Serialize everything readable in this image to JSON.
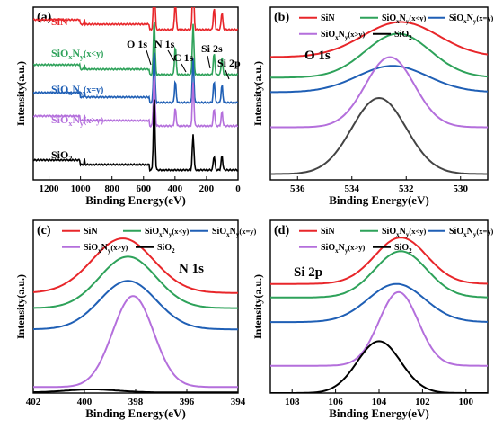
{
  "figure": {
    "panels": [
      {
        "letter": "(a)",
        "xlabel": "Binding Energy(eV)",
        "ylabel": "Intensity(a.u.)",
        "xticks": [
          "1200",
          "1000",
          "800",
          "600",
          "400",
          "200",
          "0"
        ],
        "legend": [
          {
            "base": "SiN",
            "color": "#e8262a"
          },
          {
            "base": "SiO",
            "sub1": "x",
            "mid": "N",
            "sub2": "y",
            "cond": "(x<y)",
            "color": "#2ea25a"
          },
          {
            "base": "SiO",
            "sub1": "x",
            "mid": "N",
            "sub2": "y",
            "cond": "(x=y)",
            "color": "#1f5fb5"
          },
          {
            "base": "SiO",
            "sub1": "x",
            "mid": "N",
            "sub2": "y",
            "cond": "(x>y)",
            "color": "#b46fdc"
          },
          {
            "base": "SiO",
            "sub1": "2",
            "color": "#000000"
          }
        ],
        "peak_labels": [
          "O 1s",
          "N 1s",
          "C 1s",
          "Si 2s",
          "Si 2p"
        ]
      },
      {
        "letter": "(b)",
        "xlabel": "Binding Energy(eV)",
        "ylabel": "Intensity(a.u.)",
        "xticks": [
          "536",
          "534",
          "532",
          "530"
        ],
        "title": "O 1s"
      },
      {
        "letter": "(c)",
        "xlabel": "Binding Energy(eV)",
        "ylabel": "Intensity(a.u.)",
        "xticks": [
          "402",
          "400",
          "398",
          "396",
          "394"
        ],
        "title": "N 1s"
      },
      {
        "letter": "(d)",
        "xlabel": "Binding Energy(eV)",
        "ylabel": "Intensity(a.u.)",
        "xticks": [
          "108",
          "106",
          "104",
          "102",
          "100"
        ],
        "title": "Si 2p"
      }
    ]
  },
  "chart_data": [
    {
      "type": "line",
      "panel": "(a)",
      "xlabel": "Binding Energy(eV)",
      "ylabel": "Intensity(a.u.)",
      "xlim": [
        1300,
        0
      ],
      "series": [
        {
          "name": "SiN",
          "color": "#e8262a",
          "offset": 4,
          "peaks": [
            {
              "x": 532,
              "h": 1.6
            },
            {
              "x": 398,
              "h": 0.8
            },
            {
              "x": 285,
              "h": 1.4
            },
            {
              "x": 152,
              "h": 0.6
            },
            {
              "x": 102,
              "h": 0.5
            }
          ]
        },
        {
          "name": "SiOxNy(x<y)",
          "color": "#2ea25a",
          "offset": 3,
          "peaks": [
            {
              "x": 532,
              "h": 1.6
            },
            {
              "x": 398,
              "h": 0.8
            },
            {
              "x": 285,
              "h": 1.4
            },
            {
              "x": 152,
              "h": 0.6
            },
            {
              "x": 102,
              "h": 0.5
            }
          ]
        },
        {
          "name": "SiOxNy(x=y)",
          "color": "#1f5fb5",
          "offset": 2,
          "peaks": [
            {
              "x": 532,
              "h": 1.5
            },
            {
              "x": 398,
              "h": 0.6
            },
            {
              "x": 285,
              "h": 1.2
            },
            {
              "x": 152,
              "h": 0.6
            },
            {
              "x": 102,
              "h": 0.5
            }
          ]
        },
        {
          "name": "SiOxNy(x>y)",
          "color": "#b46fdc",
          "offset": 1,
          "peaks": [
            {
              "x": 532,
              "h": 1.5
            },
            {
              "x": 398,
              "h": 0.5
            },
            {
              "x": 285,
              "h": 1.2
            },
            {
              "x": 152,
              "h": 0.5
            },
            {
              "x": 102,
              "h": 0.4
            }
          ]
        },
        {
          "name": "SiO2",
          "color": "#000000",
          "offset": 0,
          "peaks": [
            {
              "x": 532,
              "h": 2.1
            },
            {
              "x": 285,
              "h": 1.0
            },
            {
              "x": 152,
              "h": 0.4
            },
            {
              "x": 102,
              "h": 0.4
            }
          ]
        }
      ]
    },
    {
      "type": "line",
      "panel": "(b)",
      "title": "O 1s",
      "xlabel": "Binding Energy(eV)",
      "ylabel": "Intensity(a.u.)",
      "xlim": [
        537,
        529
      ],
      "series": [
        {
          "name": "SiN",
          "color": "#e8262a",
          "base": 4.2,
          "center": 532.2,
          "height": 1.2,
          "sigma": 1.4
        },
        {
          "name": "SiOxNy(x<y)",
          "color": "#2ea25a",
          "base": 3.5,
          "center": 532.3,
          "height": 1.5,
          "sigma": 1.2
        },
        {
          "name": "SiOxNy(x=y)",
          "color": "#1f5fb5",
          "base": 3.0,
          "center": 532.5,
          "height": 0.9,
          "sigma": 1.3
        },
        {
          "name": "SiOxNy(x>y)",
          "color": "#b46fdc",
          "base": 1.8,
          "center": 532.6,
          "height": 2.4,
          "sigma": 0.9
        },
        {
          "name": "SiO2",
          "color": "#444444",
          "base": 0.2,
          "center": 533.0,
          "height": 2.6,
          "sigma": 1.0
        }
      ]
    },
    {
      "type": "line",
      "panel": "(c)",
      "title": "N 1s",
      "xlabel": "Binding Energy(eV)",
      "ylabel": "Intensity(a.u.)",
      "xlim": [
        402,
        394
      ],
      "series": [
        {
          "name": "SiN",
          "color": "#e8262a",
          "base": 3.3,
          "center": 398.5,
          "height": 1.8,
          "sigma": 1.2
        },
        {
          "name": "SiOxNy(x<y)",
          "color": "#2ea25a",
          "base": 2.8,
          "center": 398.3,
          "height": 1.7,
          "sigma": 1.1
        },
        {
          "name": "SiOxNy(x=y)",
          "color": "#1f5fb5",
          "base": 2.1,
          "center": 398.3,
          "height": 1.6,
          "sigma": 1.1
        },
        {
          "name": "SiOxNy(x>y)",
          "color": "#b46fdc",
          "base": 0.2,
          "center": 398.1,
          "height": 3.0,
          "sigma": 0.8
        },
        {
          "name": "SiO2",
          "color": "#000000",
          "base": 0.02,
          "center": 399.7,
          "height": 0.1,
          "sigma": 1.0
        }
      ]
    },
    {
      "type": "line",
      "panel": "(d)",
      "title": "Si 2p",
      "xlabel": "Binding Energy(eV)",
      "ylabel": "Intensity(a.u.)",
      "xlim": [
        109,
        99
      ],
      "series": [
        {
          "name": "SiN",
          "color": "#e8262a",
          "base": 4.0,
          "center": 103.0,
          "height": 1.7,
          "sigma": 1.2
        },
        {
          "name": "SiOxNy(x<y)",
          "color": "#2ea25a",
          "base": 3.5,
          "center": 103.0,
          "height": 1.7,
          "sigma": 1.2
        },
        {
          "name": "SiOxNy(x=y)",
          "color": "#1f5fb5",
          "base": 2.6,
          "center": 103.2,
          "height": 1.4,
          "sigma": 1.3
        },
        {
          "name": "SiOxNy(x>y)",
          "color": "#b46fdc",
          "base": 1.0,
          "center": 103.1,
          "height": 2.7,
          "sigma": 0.9
        },
        {
          "name": "SiO2",
          "color": "#000000",
          "base": 0.0,
          "center": 104.0,
          "height": 1.9,
          "sigma": 1.0
        }
      ]
    }
  ]
}
